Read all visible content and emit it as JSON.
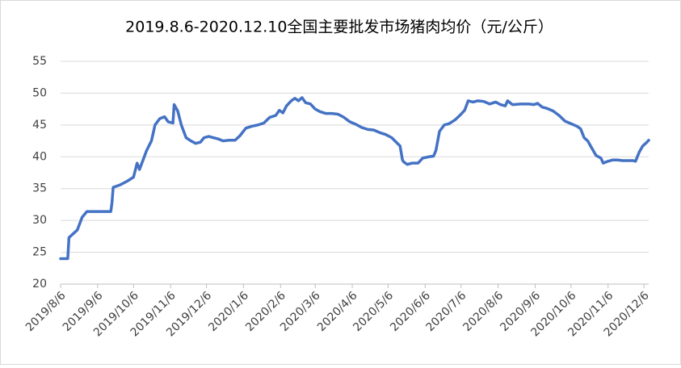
{
  "chart_data": {
    "type": "line",
    "title": "2019.8.6-2020.12.10全国主要批发市场猪肉均价（元/公斤）",
    "x": [
      "2019/8/6",
      "2019/8/12",
      "2019/8/13",
      "2019/8/20",
      "2019/8/24",
      "2019/8/28",
      "2019/9/17",
      "2019/9/18",
      "2019/9/19",
      "2019/9/25",
      "2019/10/1",
      "2019/10/6",
      "2019/10/9",
      "2019/10/11",
      "2019/10/14",
      "2019/10/17",
      "2019/10/21",
      "2019/10/24",
      "2019/10/28",
      "2019/11/1",
      "2019/11/4",
      "2019/11/8",
      "2019/11/9",
      "2019/11/12",
      "2019/11/15",
      "2019/11/19",
      "2019/11/23",
      "2019/11/27",
      "2019/12/1",
      "2019/12/4",
      "2019/12/8",
      "2019/12/12",
      "2019/12/16",
      "2019/12/20",
      "2019/12/25",
      "2019/12/30",
      "2020/1/3",
      "2020/1/8",
      "2020/1/13",
      "2020/1/18",
      "2020/1/23",
      "2020/1/28",
      "2020/2/2",
      "2020/2/5",
      "2020/2/8",
      "2020/2/11",
      "2020/2/15",
      "2020/2/18",
      "2020/2/21",
      "2020/2/24",
      "2020/2/27",
      "2020/3/2",
      "2020/3/6",
      "2020/3/10",
      "2020/3/15",
      "2020/3/20",
      "2020/3/25",
      "2020/3/30",
      "2020/4/4",
      "2020/4/9",
      "2020/4/14",
      "2020/4/19",
      "2020/4/24",
      "2020/4/29",
      "2020/5/4",
      "2020/5/9",
      "2020/5/16",
      "2020/5/18",
      "2020/5/19",
      "2020/5/22",
      "2020/5/26",
      "2020/5/31",
      "2020/6/4",
      "2020/6/9",
      "2020/6/13",
      "2020/6/15",
      "2020/6/18",
      "2020/6/22",
      "2020/6/26",
      "2020/7/1",
      "2020/7/5",
      "2020/7/9",
      "2020/7/12",
      "2020/7/16",
      "2020/7/20",
      "2020/7/25",
      "2020/7/30",
      "2020/8/4",
      "2020/8/8",
      "2020/8/12",
      "2020/8/14",
      "2020/8/18",
      "2020/8/25",
      "2020/9/1",
      "2020/9/5",
      "2020/9/8",
      "2020/9/12",
      "2020/9/16",
      "2020/9/21",
      "2020/9/26",
      "2020/10/1",
      "2020/10/6",
      "2020/10/11",
      "2020/10/14",
      "2020/10/17",
      "2020/10/20",
      "2020/10/23",
      "2020/10/27",
      "2020/10/31",
      "2020/11/2",
      "2020/11/6",
      "2020/11/10",
      "2020/11/14",
      "2020/11/18",
      "2020/11/23",
      "2020/11/27",
      "2020/11/29",
      "2020/12/2",
      "2020/12/5",
      "2020/12/8",
      "2020/12/10"
    ],
    "series": [
      {
        "color": "#4472c4",
        "values": [
          24,
          24,
          27.3,
          28.5,
          30.5,
          31.4,
          31.4,
          32.8,
          35.2,
          35.6,
          36.2,
          36.8,
          39,
          38,
          39.5,
          41,
          42.5,
          45,
          46,
          46.3,
          45.5,
          45.3,
          48.2,
          47.2,
          45,
          43,
          42.5,
          42.1,
          42.3,
          43,
          43.2,
          43,
          42.8,
          42.5,
          42.6,
          42.6,
          43.3,
          44.5,
          44.8,
          45,
          45.3,
          46.2,
          46.5,
          47.3,
          46.9,
          48,
          48.8,
          49.2,
          48.8,
          49.3,
          48.5,
          48.3,
          47.5,
          47.1,
          46.8,
          46.8,
          46.7,
          46.2,
          45.5,
          45.1,
          44.6,
          44.3,
          44.2,
          43.8,
          43.5,
          43,
          41.7,
          39.5,
          39.2,
          38.8,
          39,
          39,
          39.8,
          40,
          40.1,
          41,
          44,
          45,
          45.2,
          45.8,
          46.5,
          47.3,
          48.8,
          48.6,
          48.8,
          48.7,
          48.3,
          48.6,
          48.2,
          48,
          48.8,
          48.2,
          48.3,
          48.3,
          48.2,
          48.4,
          47.8,
          47.6,
          47.2,
          46.5,
          45.6,
          45.2,
          44.8,
          44.4,
          43,
          42.5,
          41.5,
          40.2,
          39.8,
          39,
          39.3,
          39.5,
          39.5,
          39.4,
          39.4,
          39.4,
          39.3,
          40.7,
          41.7,
          42.2,
          42.6
        ]
      }
    ],
    "xlim": [
      "2019/8/6",
      "2020/12/10"
    ],
    "xticks": [
      "2019/8/6",
      "2019/9/6",
      "2019/10/6",
      "2019/11/6",
      "2019/12/6",
      "2020/1/6",
      "2020/2/6",
      "2020/3/6",
      "2020/4/6",
      "2020/5/6",
      "2020/6/6",
      "2020/7/6",
      "2020/8/6",
      "2020/9/6",
      "2020/10/6",
      "2020/11/6",
      "2020/12/6"
    ],
    "ylim": [
      20,
      55
    ],
    "yticks": [
      20,
      25,
      30,
      35,
      40,
      45,
      50,
      55
    ],
    "grid": true
  }
}
